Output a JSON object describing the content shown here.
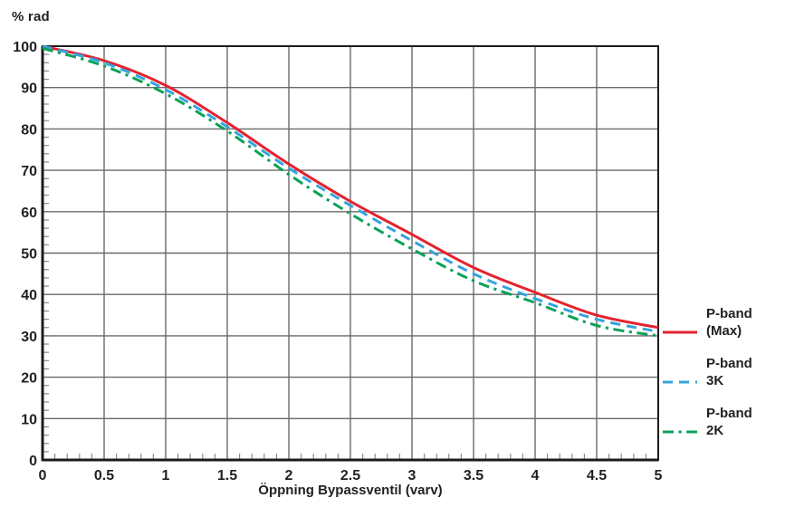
{
  "chart_data": {
    "type": "line",
    "title": "",
    "ylabel": "% rad",
    "xlabel": "Öppning Bypassventil (varv)",
    "xlim": [
      0,
      5
    ],
    "ylim": [
      0,
      100
    ],
    "grid": true,
    "legend_position": "right",
    "x_tick_step": 0.5,
    "y_tick_step": 10,
    "x_minor_step": 0.1,
    "y_minor_step": 2,
    "x_tick_values": [
      0,
      0.5,
      1,
      1.5,
      2,
      2.5,
      3,
      3.5,
      4,
      4.5,
      5
    ],
    "x_tick_labels": [
      "0",
      "0.5",
      "1",
      "1.5",
      "2",
      "2.5",
      "3",
      "3.5",
      "4",
      "4.5",
      "5"
    ],
    "y_tick_values": [
      0,
      10,
      20,
      30,
      40,
      50,
      60,
      70,
      80,
      90,
      100
    ],
    "y_tick_labels": [
      "0",
      "10",
      "20",
      "30",
      "40",
      "50",
      "60",
      "70",
      "80",
      "90",
      "100"
    ],
    "x": [
      0,
      0.5,
      1,
      1.5,
      2,
      2.5,
      3,
      3.5,
      4,
      4.5,
      5
    ],
    "series": [
      {
        "name": "P-band (Max)",
        "legend_lines": [
          "P-band",
          "(Max)"
        ],
        "color": "#e32330",
        "dash": "solid",
        "values": [
          100,
          96.5,
          90.5,
          81.5,
          71.5,
          62.5,
          54.5,
          46.5,
          40.5,
          35,
          32
        ]
      },
      {
        "name": "P-band 3K",
        "legend_lines": [
          "P-band",
          "3K"
        ],
        "color": "#35a3dc",
        "dash": "dashed",
        "values": [
          100,
          96,
          89.5,
          80.5,
          70.5,
          61.5,
          53,
          45,
          39,
          34,
          31
        ]
      },
      {
        "name": "P-band 2K",
        "legend_lines": [
          "P-band",
          "2K"
        ],
        "color": "#0ba159",
        "dash": "dashdot",
        "values": [
          99.5,
          95.2,
          88.5,
          79.5,
          69,
          59.5,
          51,
          43.3,
          38,
          32.5,
          30
        ]
      }
    ],
    "colors": {
      "grid": "#6a6a6a",
      "axis": "#1c1c1c",
      "text": "#231f20",
      "minor_tick": "#8c8c8c",
      "background": "#ffffff"
    }
  }
}
